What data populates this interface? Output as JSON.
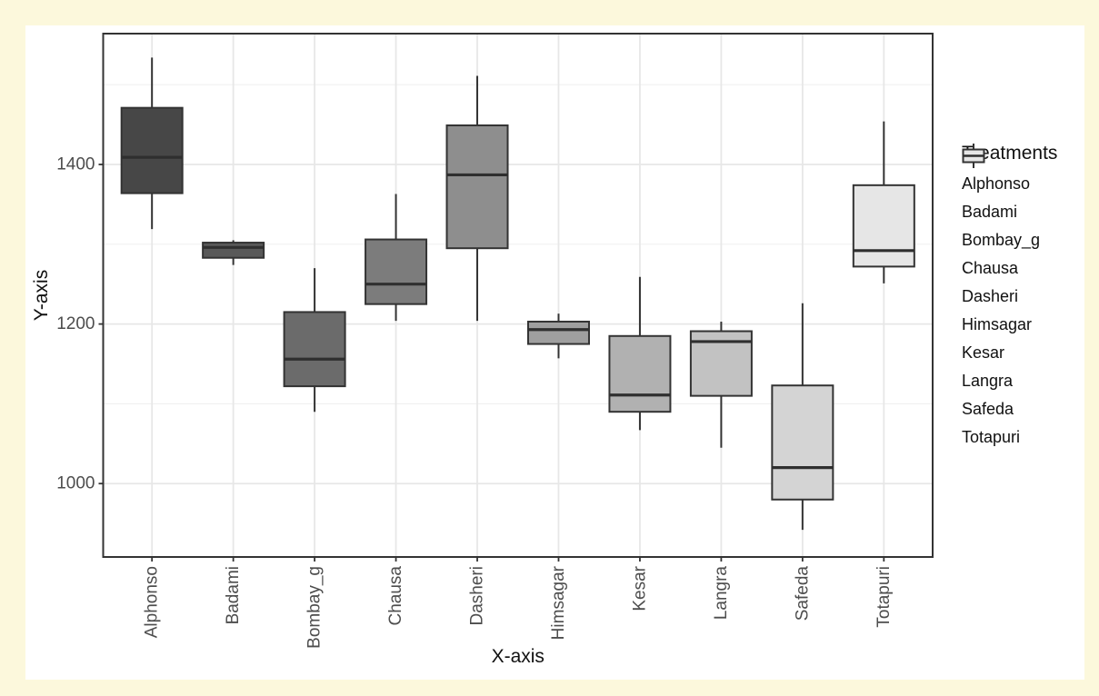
{
  "page": {
    "background_color": "#FCF8DC",
    "figure_background": "#FFFFFF"
  },
  "chart_data": {
    "type": "boxplot",
    "title": "",
    "xlabel": "X-axis",
    "ylabel": "Y-axis",
    "categories": [
      "Alphonso",
      "Badami",
      "Bombay_g",
      "Chausa",
      "Dasheri",
      "Himsagar",
      "Kesar",
      "Langra",
      "Safeda",
      "Totapuri"
    ],
    "boxes": [
      {
        "name": "Alphonso",
        "fill": "#474747",
        "min": 1319,
        "q1": 1364,
        "median": 1409,
        "q3": 1471,
        "max": 1534
      },
      {
        "name": "Badami",
        "fill": "#595959",
        "min": 1274,
        "q1": 1283,
        "median": 1296,
        "q3": 1302,
        "max": 1305
      },
      {
        "name": "Bombay_g",
        "fill": "#6B6B6B",
        "min": 1090,
        "q1": 1122,
        "median": 1156,
        "q3": 1215,
        "max": 1270
      },
      {
        "name": "Chausa",
        "fill": "#7C7C7C",
        "min": 1204,
        "q1": 1225,
        "median": 1250,
        "q3": 1306,
        "max": 1363
      },
      {
        "name": "Dasheri",
        "fill": "#8E8E8E",
        "min": 1204,
        "q1": 1295,
        "median": 1387,
        "q3": 1449,
        "max": 1511
      },
      {
        "name": "Himsagar",
        "fill": "#9F9F9F",
        "min": 1157,
        "q1": 1175,
        "median": 1193,
        "q3": 1203,
        "max": 1213
      },
      {
        "name": "Kesar",
        "fill": "#B1B1B1",
        "min": 1067,
        "q1": 1090,
        "median": 1111,
        "q3": 1185,
        "max": 1259
      },
      {
        "name": "Langra",
        "fill": "#C2C2C2",
        "min": 1045,
        "q1": 1110,
        "median": 1178,
        "q3": 1191,
        "max": 1203
      },
      {
        "name": "Safeda",
        "fill": "#D4D4D4",
        "min": 942,
        "q1": 980,
        "median": 1020,
        "q3": 1123,
        "max": 1226
      },
      {
        "name": "Totapuri",
        "fill": "#E6E6E6",
        "min": 1251,
        "q1": 1272,
        "median": 1292,
        "q3": 1374,
        "max": 1454
      }
    ],
    "y_axis": {
      "ticks": [
        1400,
        1200,
        1000
      ],
      "minor_gridlines": [
        1500,
        1300,
        1100
      ],
      "limits": [
        908,
        1564
      ]
    },
    "x_tick_rotation_deg": 90,
    "grid": true,
    "legend": {
      "title": "Treatments",
      "position": "right",
      "entries": [
        {
          "label": "Alphonso",
          "fill": "#474747"
        },
        {
          "label": "Badami",
          "fill": "#595959"
        },
        {
          "label": "Bombay_g",
          "fill": "#6B6B6B"
        },
        {
          "label": "Chausa",
          "fill": "#7C7C7C"
        },
        {
          "label": "Dasheri",
          "fill": "#8E8E8E"
        },
        {
          "label": "Himsagar",
          "fill": "#9F9F9F"
        },
        {
          "label": "Kesar",
          "fill": "#B1B1B1"
        },
        {
          "label": "Langra",
          "fill": "#C2C2C2"
        },
        {
          "label": "Safeda",
          "fill": "#D4D4D4"
        },
        {
          "label": "Totapuri",
          "fill": "#E6E6E6"
        }
      ]
    },
    "styles": {
      "box_border": "#333333",
      "median_color": "#2F2F2F",
      "panel_border": "#333333",
      "grid_major": "#E7E7E7",
      "grid_minor": "#F0F0F0",
      "tick_mark_color": "#333333",
      "tick_label_color": "#4D4D4D",
      "axis_title_color": "#111111"
    }
  }
}
